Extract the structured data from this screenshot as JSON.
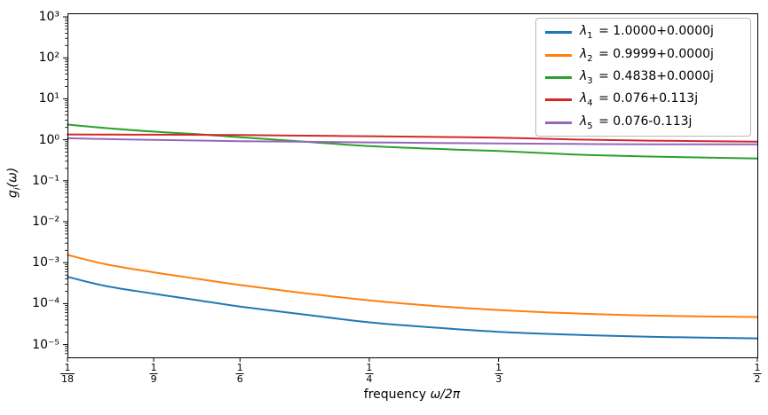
{
  "chart_data": {
    "type": "line",
    "title": "",
    "xlabel": {
      "prefix": "frequency ",
      "math": "ω/2π"
    },
    "ylabel": {
      "base": "g",
      "sub": "i",
      "rest": "(ω)"
    },
    "x_scale": "linear",
    "x_range": [
      0.055556,
      0.5
    ],
    "y_scale": "log",
    "y_range_log10": [
      -5.31,
      3.09
    ],
    "grid": false,
    "legend_position": "upper right",
    "x_ticks": [
      {
        "num": "1",
        "den": "18",
        "value": 0.055556
      },
      {
        "num": "1",
        "den": "9",
        "value": 0.111111
      },
      {
        "num": "1",
        "den": "6",
        "value": 0.166667
      },
      {
        "num": "1",
        "den": "4",
        "value": 0.25
      },
      {
        "num": "1",
        "den": "3",
        "value": 0.333333
      },
      {
        "num": "1",
        "den": "2",
        "value": 0.5
      }
    ],
    "y_ticks": [
      {
        "label": "10³",
        "exp": 3
      },
      {
        "label": "10²",
        "exp": 2
      },
      {
        "label": "10¹",
        "exp": 1
      },
      {
        "label": "10⁰",
        "exp": 0
      },
      {
        "label": "10⁻¹",
        "exp": -1
      },
      {
        "label": "10⁻²",
        "exp": -2
      },
      {
        "label": "10⁻³",
        "exp": -3
      },
      {
        "label": "10⁻⁴",
        "exp": -4
      },
      {
        "label": "10⁻⁵",
        "exp": -5
      }
    ],
    "x": [
      0.0556,
      0.08,
      0.1111,
      0.14,
      0.1667,
      0.2083,
      0.25,
      0.2917,
      0.3333,
      0.38,
      0.43,
      0.5
    ],
    "series": [
      {
        "name": "lambda-1",
        "color": "#1f77b4",
        "legend": {
          "sym": "λ",
          "sub": "1",
          "rest": "= 1.0000+0.0000j"
        },
        "values": [
          0.00045,
          0.00027,
          0.000175,
          0.00012,
          8.5e-05,
          5.4e-05,
          3.5e-05,
          2.6e-05,
          2.05e-05,
          1.75e-05,
          1.55e-05,
          1.42e-05
        ]
      },
      {
        "name": "lambda-2",
        "color": "#ff7f0e",
        "legend": {
          "sym": "λ",
          "sub": "2",
          "rest": "= 0.9999+0.0000j"
        },
        "values": [
          0.00155,
          0.00092,
          0.00058,
          0.0004,
          0.000285,
          0.00018,
          0.00012,
          8.8e-05,
          7e-05,
          5.8e-05,
          5.1e-05,
          4.7e-05
        ]
      },
      {
        "name": "lambda-3",
        "color": "#2ca02c",
        "legend": {
          "sym": "λ",
          "sub": "3",
          "rest": "= 0.4838+0.0000j"
        },
        "values": [
          2.35,
          1.93,
          1.58,
          1.36,
          1.15,
          0.9,
          0.7,
          0.6,
          0.53,
          0.44,
          0.39,
          0.35
        ]
      },
      {
        "name": "lambda-4",
        "color": "#d62728",
        "legend": {
          "sym": "λ",
          "sub": "4",
          "rest": "= 0.076+0.113j"
        },
        "values": [
          1.35,
          1.34,
          1.33,
          1.32,
          1.3,
          1.26,
          1.22,
          1.17,
          1.12,
          1.02,
          0.95,
          0.9
        ]
      },
      {
        "name": "lambda-5",
        "color": "#9467bd",
        "legend": {
          "sym": "λ",
          "sub": "5",
          "rest": "= 0.076-0.113j"
        },
        "values": [
          1.09,
          1.04,
          0.99,
          0.955,
          0.925,
          0.89,
          0.86,
          0.835,
          0.815,
          0.79,
          0.775,
          0.77
        ]
      }
    ]
  }
}
